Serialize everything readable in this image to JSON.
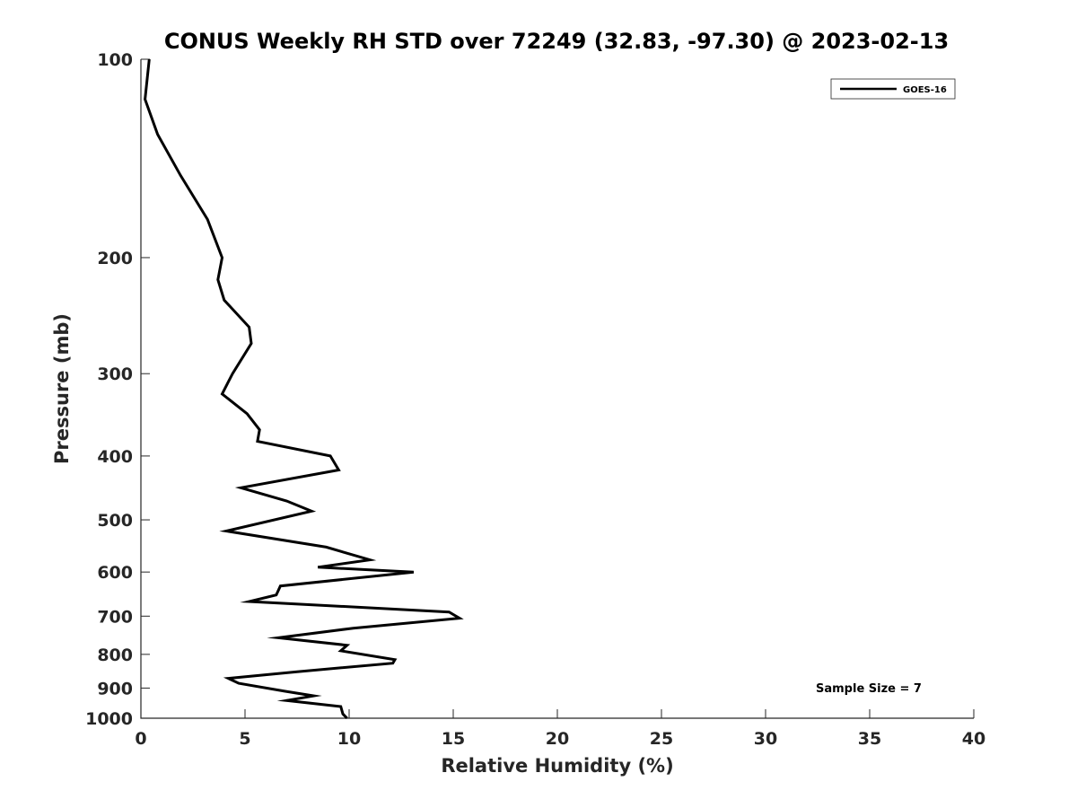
{
  "chart_data": {
    "type": "line",
    "title": "CONUS Weekly RH STD over 72249 (32.83, -97.30) @ 2023-02-13",
    "xlabel": "Relative Humidity (%)",
    "ylabel": "Pressure (mb)",
    "xlim": [
      0,
      40
    ],
    "ylim": [
      1000,
      100
    ],
    "yscale": "log",
    "y_inverted": true,
    "grid": false,
    "x_ticks": [
      0,
      5,
      10,
      15,
      20,
      25,
      30,
      35,
      40
    ],
    "y_ticks": [
      100,
      200,
      300,
      400,
      500,
      600,
      700,
      800,
      900,
      1000
    ],
    "legend_position": "top-right",
    "series": [
      {
        "name": "GOES-16",
        "color": "#000000",
        "points": [
          [
            0.4,
            100
          ],
          [
            0.2,
            115
          ],
          [
            0.8,
            130
          ],
          [
            1.9,
            150
          ],
          [
            3.2,
            175
          ],
          [
            3.9,
            200
          ],
          [
            3.7,
            216
          ],
          [
            4.0,
            232
          ],
          [
            5.2,
            255
          ],
          [
            5.3,
            270
          ],
          [
            4.4,
            300
          ],
          [
            3.9,
            322
          ],
          [
            5.1,
            345
          ],
          [
            5.7,
            365
          ],
          [
            5.6,
            380
          ],
          [
            9.1,
            400
          ],
          [
            9.5,
            420
          ],
          [
            4.8,
            447
          ],
          [
            7.0,
            468
          ],
          [
            8.2,
            485
          ],
          [
            4.1,
            520
          ],
          [
            8.9,
            550
          ],
          [
            11.0,
            575
          ],
          [
            8.5,
            590
          ],
          [
            13.1,
            600
          ],
          [
            6.7,
            630
          ],
          [
            6.5,
            650
          ],
          [
            5.2,
            665
          ],
          [
            14.8,
            690
          ],
          [
            15.3,
            705
          ],
          [
            10.2,
            730
          ],
          [
            6.6,
            755
          ],
          [
            9.9,
            775
          ],
          [
            9.6,
            790
          ],
          [
            12.2,
            815
          ],
          [
            12.1,
            825
          ],
          [
            7.5,
            850
          ],
          [
            4.2,
            870
          ],
          [
            4.7,
            885
          ],
          [
            6.9,
            910
          ],
          [
            8.3,
            925
          ],
          [
            7.0,
            940
          ],
          [
            9.6,
            960
          ],
          [
            9.7,
            985
          ],
          [
            9.9,
            1000
          ]
        ]
      }
    ],
    "annotations": [
      "Sample Size = 7"
    ]
  }
}
